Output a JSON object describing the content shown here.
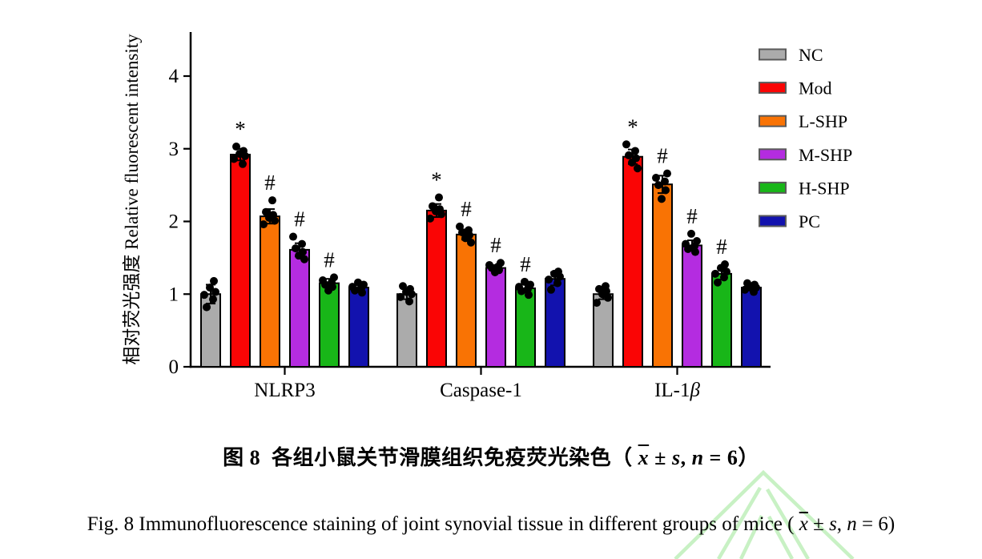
{
  "figure": {
    "caption_zh_parts": [
      {
        "text": "图 8  各组小鼠关节滑膜组织免疫荧光染色（ ",
        "bold": true
      },
      {
        "text": "x",
        "bold": true,
        "italic": true,
        "overline": true
      },
      {
        "text": " ± ",
        "bold": true
      },
      {
        "text": "s",
        "bold": true,
        "italic": true
      },
      {
        "text": ", ",
        "bold": true
      },
      {
        "text": "n",
        "bold": true,
        "italic": true
      },
      {
        "text": " = 6）",
        "bold": true
      }
    ],
    "caption_en_parts": [
      {
        "text": "Fig. 8 Immunofluorescence staining of joint synovial tissue in different groups of mice ( "
      },
      {
        "text": "x",
        "italic": true,
        "overline": true
      },
      {
        "text": " ± "
      },
      {
        "text": "s",
        "italic": true
      },
      {
        "text": ", "
      },
      {
        "text": "n",
        "italic": true
      },
      {
        "text": " = 6)"
      }
    ]
  },
  "watermark": {
    "color": "#c8f1c4"
  },
  "chart_data": {
    "type": "bar",
    "title": "",
    "xlabel": "",
    "ylabel": "相对荧光强度 Relative fluorescent intensity",
    "ylim": [
      0,
      4.6
    ],
    "yticks": [
      0,
      1,
      2,
      3,
      4
    ],
    "grid": false,
    "legend_position": "top-right",
    "significance_note": "* above Mod bars, # above L-SHP, M-SHP and H-SHP bars",
    "categories": [
      {
        "text": "NLRP3",
        "italic_suffix": ""
      },
      {
        "text": "Caspase-1",
        "italic_suffix": ""
      },
      {
        "text": "IL-1",
        "italic_suffix": "β"
      }
    ],
    "series": [
      {
        "name": "NC",
        "color": "#ababab",
        "values": [
          1.0,
          1.0,
          1.0
        ],
        "err": [
          0.13,
          0.07,
          0.07
        ],
        "sig": [
          "",
          "",
          ""
        ],
        "points": [
          [
            0.82,
            0.93,
            0.99,
            1.03,
            1.09,
            1.18
          ],
          [
            0.9,
            0.96,
            1.0,
            1.03,
            1.07,
            1.11
          ],
          [
            0.88,
            0.95,
            1.0,
            1.04,
            1.07,
            1.11
          ]
        ]
      },
      {
        "name": "Mod",
        "color": "#fa0505",
        "values": [
          2.92,
          2.15,
          2.89
        ],
        "err": [
          0.08,
          0.09,
          0.1
        ],
        "sig": [
          "*",
          "*",
          "*"
        ],
        "points": [
          [
            2.79,
            2.86,
            2.9,
            2.93,
            2.97,
            3.03
          ],
          [
            2.04,
            2.1,
            2.14,
            2.17,
            2.21,
            2.33
          ],
          [
            2.73,
            2.81,
            2.87,
            2.91,
            2.97,
            3.06
          ]
        ]
      },
      {
        "name": "L-SHP",
        "color": "#f97304",
        "values": [
          2.07,
          1.82,
          2.51
        ],
        "err": [
          0.1,
          0.07,
          0.12
        ],
        "sig": [
          "#",
          "#",
          "#"
        ],
        "points": [
          [
            1.96,
            2.01,
            2.05,
            2.09,
            2.13,
            2.29
          ],
          [
            1.71,
            1.77,
            1.81,
            1.85,
            1.88,
            1.93
          ],
          [
            2.31,
            2.43,
            2.5,
            2.55,
            2.6,
            2.66
          ]
        ]
      },
      {
        "name": "M-SHP",
        "color": "#b42ce0",
        "values": [
          1.61,
          1.36,
          1.67
        ],
        "err": [
          0.09,
          0.04,
          0.07
        ],
        "sig": [
          "#",
          "#",
          "#"
        ],
        "points": [
          [
            1.48,
            1.53,
            1.58,
            1.63,
            1.69,
            1.79
          ],
          [
            1.3,
            1.33,
            1.36,
            1.38,
            1.4,
            1.43
          ],
          [
            1.58,
            1.62,
            1.66,
            1.69,
            1.73,
            1.83
          ]
        ]
      },
      {
        "name": "H-SHP",
        "color": "#18b618",
        "values": [
          1.15,
          1.08,
          1.28
        ],
        "err": [
          0.06,
          0.06,
          0.08
        ],
        "sig": [
          "#",
          "#",
          "#"
        ],
        "points": [
          [
            1.05,
            1.1,
            1.13,
            1.16,
            1.19,
            1.23
          ],
          [
            0.99,
            1.04,
            1.07,
            1.1,
            1.13,
            1.17
          ],
          [
            1.16,
            1.23,
            1.28,
            1.31,
            1.36,
            1.41
          ]
        ]
      },
      {
        "name": "PC",
        "color": "#1212ae",
        "values": [
          1.09,
          1.21,
          1.09
        ],
        "err": [
          0.04,
          0.09,
          0.04
        ],
        "sig": [
          "",
          "",
          ""
        ],
        "points": [
          [
            1.02,
            1.05,
            1.08,
            1.1,
            1.13,
            1.16
          ],
          [
            1.06,
            1.15,
            1.2,
            1.24,
            1.28,
            1.31
          ],
          [
            1.03,
            1.06,
            1.09,
            1.11,
            1.13,
            1.15
          ]
        ]
      }
    ]
  }
}
